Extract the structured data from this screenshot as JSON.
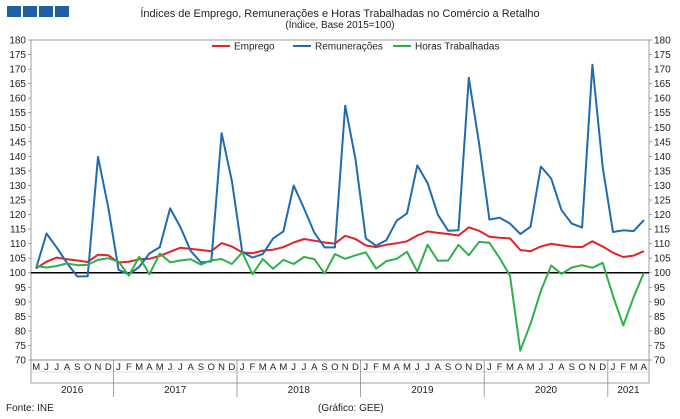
{
  "header": {
    "title": "Índices de Emprego, Remunerações e Horas Trabalhadas no Comércio a Retalho",
    "subtitle": "(Índice, Base 2015=100)"
  },
  "footer": {
    "source": "Fonte: INE",
    "credit": "(Gráfico: GEE)"
  },
  "colors": {
    "emprego": "#e0242b",
    "remuneracoes": "#1f6bb0",
    "horas": "#2eb04c",
    "baseline": "#000000",
    "logo": "#1f5fa8"
  },
  "chart_data": {
    "type": "line",
    "title": "Índices de Emprego, Remunerações e Horas Trabalhadas no Comércio a Retalho",
    "ylim": [
      70,
      180
    ],
    "yticks": [
      70,
      75,
      80,
      85,
      90,
      95,
      100,
      105,
      110,
      115,
      120,
      125,
      130,
      135,
      140,
      145,
      150,
      155,
      160,
      165,
      170,
      175,
      180
    ],
    "baseline": 100,
    "legend_position": "top",
    "x": [
      "M",
      "J",
      "J",
      "A",
      "S",
      "O",
      "N",
      "D",
      "J",
      "F",
      "M",
      "A",
      "M",
      "J",
      "J",
      "A",
      "S",
      "O",
      "N",
      "D",
      "J",
      "F",
      "M",
      "A",
      "M",
      "J",
      "J",
      "A",
      "S",
      "O",
      "N",
      "D",
      "J",
      "F",
      "M",
      "A",
      "M",
      "J",
      "J",
      "A",
      "S",
      "O",
      "N",
      "D",
      "J",
      "F",
      "M",
      "A",
      "M",
      "J",
      "J",
      "A",
      "S",
      "O",
      "N",
      "D",
      "J",
      "F",
      "M",
      "A"
    ],
    "years": [
      {
        "label": "2016",
        "start": 0,
        "end": 7
      },
      {
        "label": "2017",
        "start": 8,
        "end": 19
      },
      {
        "label": "2018",
        "start": 20,
        "end": 31
      },
      {
        "label": "2019",
        "start": 32,
        "end": 43
      },
      {
        "label": "2020",
        "start": 44,
        "end": 55
      },
      {
        "label": "2021",
        "start": 56,
        "end": 59
      }
    ],
    "series": [
      {
        "name": "Emprego",
        "color": "#e0242b",
        "values": [
          101.5,
          103.8,
          105.2,
          104.6,
          104.2,
          103.7,
          106.2,
          106.0,
          103.5,
          103.8,
          104.6,
          104.8,
          105.8,
          107.2,
          108.6,
          108.2,
          107.8,
          107.4,
          110.2,
          109.0,
          107.0,
          106.7,
          107.6,
          107.9,
          108.8,
          110.4,
          111.6,
          111.0,
          110.4,
          110.0,
          112.7,
          111.6,
          109.4,
          108.8,
          109.6,
          110.1,
          110.8,
          112.8,
          114.2,
          113.7,
          113.3,
          112.8,
          115.6,
          114.4,
          112.4,
          112.0,
          111.8,
          107.8,
          107.4,
          109.0,
          109.9,
          109.4,
          108.9,
          108.8,
          110.8,
          109.0,
          106.9,
          105.4,
          105.9,
          107.4
        ]
      },
      {
        "name": "Remunerações",
        "color": "#1f6bb0",
        "values": [
          101.5,
          113.5,
          108.6,
          103.3,
          98.7,
          98.8,
          139.8,
          122.4,
          101.0,
          99.4,
          102.0,
          106.6,
          108.8,
          122.1,
          115.7,
          107.5,
          103.5,
          103.9,
          148.0,
          131.5,
          107.2,
          105.2,
          106.4,
          111.8,
          114.2,
          130.0,
          122.1,
          113.8,
          108.7,
          108.7,
          157.4,
          139.0,
          111.8,
          109.3,
          111.2,
          117.9,
          120.4,
          136.9,
          130.8,
          119.9,
          114.4,
          114.6,
          167.0,
          144.4,
          118.3,
          118.9,
          116.9,
          113.3,
          115.8,
          136.5,
          132.4,
          121.5,
          116.9,
          115.5,
          171.5,
          136.3,
          114.0,
          114.6,
          114.3,
          118.1
        ]
      },
      {
        "name": "Horas Trabalhadas",
        "color": "#2eb04c",
        "values": [
          102.3,
          101.8,
          102.3,
          103.2,
          102.6,
          102.7,
          104.4,
          105.0,
          103.8,
          99.0,
          105.5,
          99.5,
          106.6,
          103.6,
          104.2,
          104.6,
          102.8,
          104.3,
          104.7,
          103.0,
          107.0,
          99.5,
          104.7,
          101.4,
          104.4,
          103.0,
          105.4,
          104.7,
          99.7,
          106.4,
          104.8,
          106.0,
          107.0,
          101.4,
          104.0,
          104.8,
          107.2,
          100.4,
          109.6,
          104.1,
          104.2,
          109.6,
          106.0,
          110.6,
          110.3,
          105.0,
          99.0,
          73.2,
          82.4,
          93.8,
          102.5,
          99.6,
          101.8,
          102.6,
          101.7,
          103.4,
          92.0,
          81.9,
          91.6,
          100.0
        ]
      }
    ]
  }
}
